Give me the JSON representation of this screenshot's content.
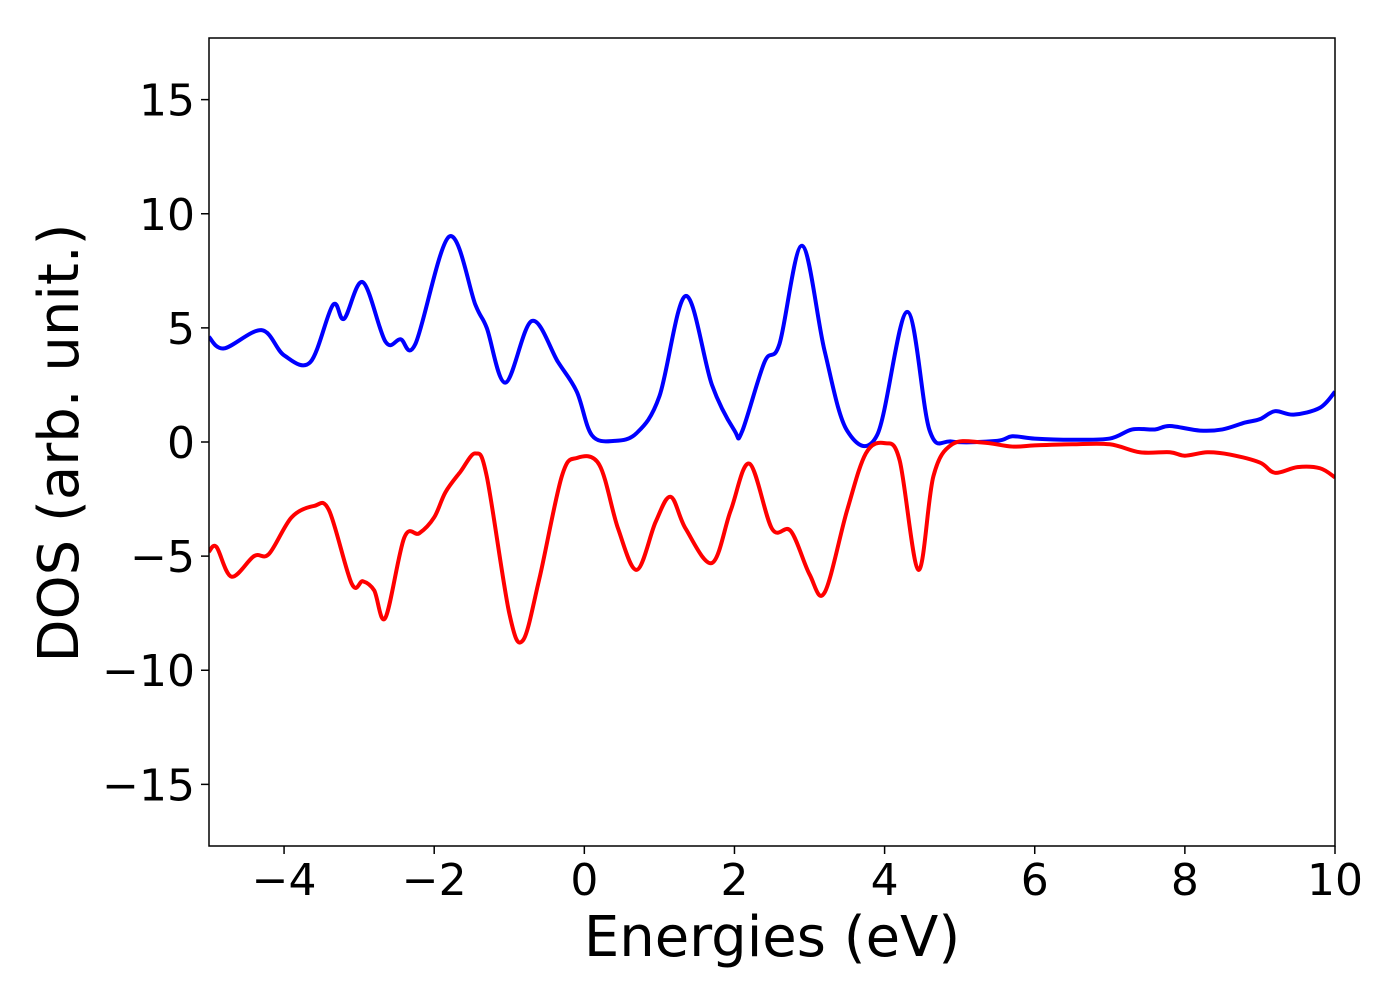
{
  "chart_data": {
    "type": "line",
    "x_label": "Energies (eV)",
    "y_label": "DOS (arb. unit.)",
    "xlim": [
      -5,
      10
    ],
    "ylim": [
      -17.7,
      17.7
    ],
    "xticks": [
      {
        "value": -4,
        "label": "−4"
      },
      {
        "value": -2,
        "label": "−2"
      },
      0,
      2,
      4,
      6,
      8,
      10
    ],
    "yticks": [
      {
        "value": -15,
        "label": "−15"
      },
      {
        "value": -10,
        "label": "−10"
      },
      {
        "value": -5,
        "label": "−5"
      },
      0,
      5,
      10,
      15
    ],
    "grid": false,
    "series": [
      {
        "color": "#0000ff",
        "x": [
          -5,
          -4.8,
          -4.3,
          -4.0,
          -3.65,
          -3.35,
          -3.2,
          -2.95,
          -2.65,
          -2.45,
          -2.25,
          -1.8,
          -1.45,
          -1.3,
          -1.05,
          -0.7,
          -0.35,
          -0.1,
          0.1,
          0.4,
          0.7,
          1.0,
          1.35,
          1.7,
          2.0,
          2.1,
          2.4,
          2.6,
          2.9,
          3.2,
          3.5,
          3.9,
          4.3,
          4.6,
          4.9,
          5.5,
          5.7,
          6.0,
          6.5,
          7.0,
          7.3,
          7.6,
          7.8,
          8.2,
          8.5,
          8.8,
          9.0,
          9.2,
          9.45,
          9.8,
          10
        ],
        "values": [
          4.6,
          4.1,
          4.9,
          3.8,
          3.5,
          6.0,
          5.4,
          7.0,
          4.4,
          4.5,
          4.3,
          9.0,
          6.0,
          5.0,
          2.6,
          5.3,
          3.5,
          2.2,
          0.3,
          0.05,
          0.4,
          2.0,
          6.4,
          2.5,
          0.5,
          0.45,
          3.5,
          4.3,
          8.6,
          4.0,
          0.5,
          0.3,
          5.7,
          0.5,
          0.02,
          0.05,
          0.25,
          0.15,
          0.1,
          0.15,
          0.55,
          0.55,
          0.7,
          0.5,
          0.55,
          0.85,
          1.0,
          1.35,
          1.2,
          1.5,
          2.2
        ]
      },
      {
        "color": "#ff0000",
        "x": [
          -5,
          -4.9,
          -4.7,
          -4.4,
          -4.2,
          -3.9,
          -3.6,
          -3.4,
          -3.1,
          -2.95,
          -2.8,
          -2.65,
          -2.4,
          -2.2,
          -2.0,
          -1.85,
          -1.65,
          -1.45,
          -1.3,
          -1.0,
          -0.82,
          -0.6,
          -0.3,
          -0.1,
          0.2,
          0.45,
          0.7,
          0.95,
          1.15,
          1.35,
          1.7,
          1.95,
          2.2,
          2.5,
          2.75,
          3.0,
          3.2,
          3.5,
          3.75,
          4.0,
          4.2,
          4.45,
          4.65,
          4.9,
          5.3,
          5.7,
          6.0,
          6.5,
          7.0,
          7.4,
          7.8,
          8.0,
          8.3,
          8.6,
          9.0,
          9.2,
          9.5,
          9.8,
          10
        ],
        "values": [
          -4.8,
          -4.6,
          -5.9,
          -5.0,
          -4.9,
          -3.3,
          -2.8,
          -3.0,
          -6.2,
          -6.1,
          -6.5,
          -7.7,
          -4.2,
          -4.0,
          -3.3,
          -2.2,
          -1.3,
          -0.5,
          -1.5,
          -7.5,
          -8.7,
          -6.0,
          -1.5,
          -0.7,
          -1.0,
          -3.8,
          -5.6,
          -3.5,
          -2.4,
          -3.8,
          -5.3,
          -3.0,
          -0.95,
          -3.8,
          -3.9,
          -5.8,
          -6.6,
          -3.0,
          -0.5,
          -0.05,
          -0.8,
          -5.6,
          -1.5,
          -0.1,
          -0.02,
          -0.2,
          -0.15,
          -0.1,
          -0.1,
          -0.45,
          -0.45,
          -0.6,
          -0.45,
          -0.55,
          -0.9,
          -1.35,
          -1.1,
          -1.15,
          -1.55
        ]
      }
    ]
  }
}
